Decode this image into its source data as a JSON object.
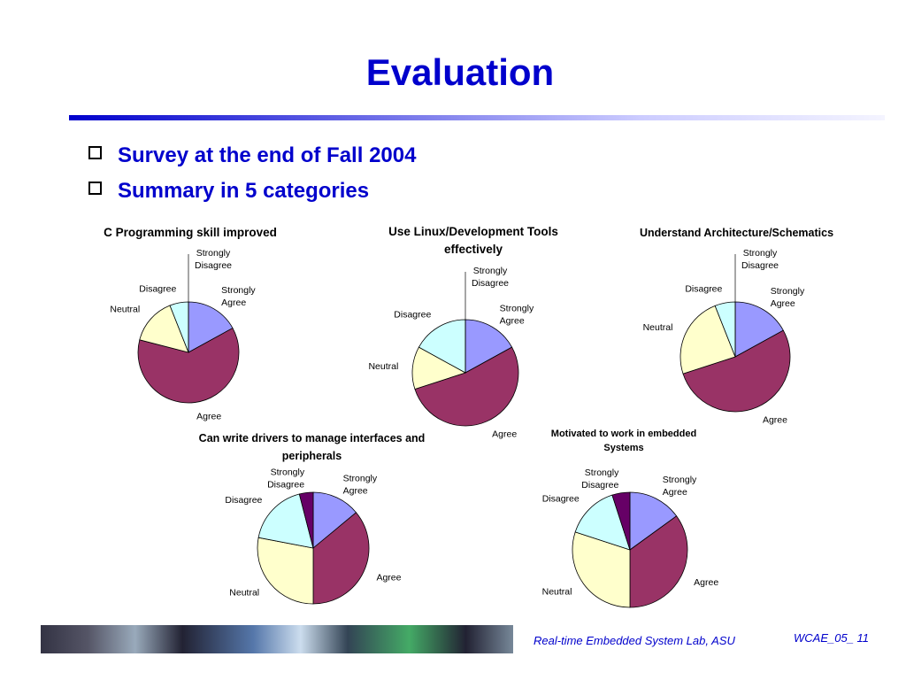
{
  "slide": {
    "title": "Evaluation",
    "bullets": [
      "Survey at the end of Fall 2004",
      "Summary in 5 categories"
    ],
    "footer_lab": "Real-time Embedded System Lab, ASU",
    "footer_page": "WCAE_05_ 11"
  },
  "chart_data": [
    {
      "type": "pie",
      "title": "C Programming skill improved",
      "categories": [
        "Strongly Agree",
        "Agree",
        "Neutral",
        "Disagree",
        "Strongly Disagree"
      ],
      "values": [
        17,
        62,
        15,
        6,
        0
      ],
      "colors": [
        "#9999ff",
        "#993366",
        "#ffffcc",
        "#ccffff",
        "#660066"
      ]
    },
    {
      "type": "pie",
      "title": "Use Linux/Development Tools effectively",
      "categories": [
        "Strongly Agree",
        "Agree",
        "Neutral",
        "Disagree",
        "Strongly Disagree"
      ],
      "values": [
        17,
        53,
        13,
        17,
        0
      ],
      "colors": [
        "#9999ff",
        "#993366",
        "#ffffcc",
        "#ccffff",
        "#660066"
      ]
    },
    {
      "type": "pie",
      "title": "Understand Architecture/Schematics",
      "categories": [
        "Strongly Agree",
        "Agree",
        "Neutral",
        "Disagree",
        "Strongly Disagree"
      ],
      "values": [
        17,
        53,
        24,
        6,
        0
      ],
      "colors": [
        "#9999ff",
        "#993366",
        "#ffffcc",
        "#ccffff",
        "#660066"
      ]
    },
    {
      "type": "pie",
      "title": "Can write drivers to manage interfaces and peripherals",
      "categories": [
        "Strongly Agree",
        "Agree",
        "Neutral",
        "Disagree",
        "Strongly Disagree"
      ],
      "values": [
        14,
        36,
        28,
        18,
        4
      ],
      "colors": [
        "#9999ff",
        "#993366",
        "#ffffcc",
        "#ccffff",
        "#660066"
      ]
    },
    {
      "type": "pie",
      "title": "Motivated to work in embedded Systems",
      "categories": [
        "Strongly Agree",
        "Agree",
        "Neutral",
        "Disagree",
        "Strongly Disagree"
      ],
      "values": [
        15,
        35,
        30,
        15,
        5
      ],
      "colors": [
        "#9999ff",
        "#993366",
        "#ffffcc",
        "#ccffff",
        "#660066"
      ]
    }
  ]
}
